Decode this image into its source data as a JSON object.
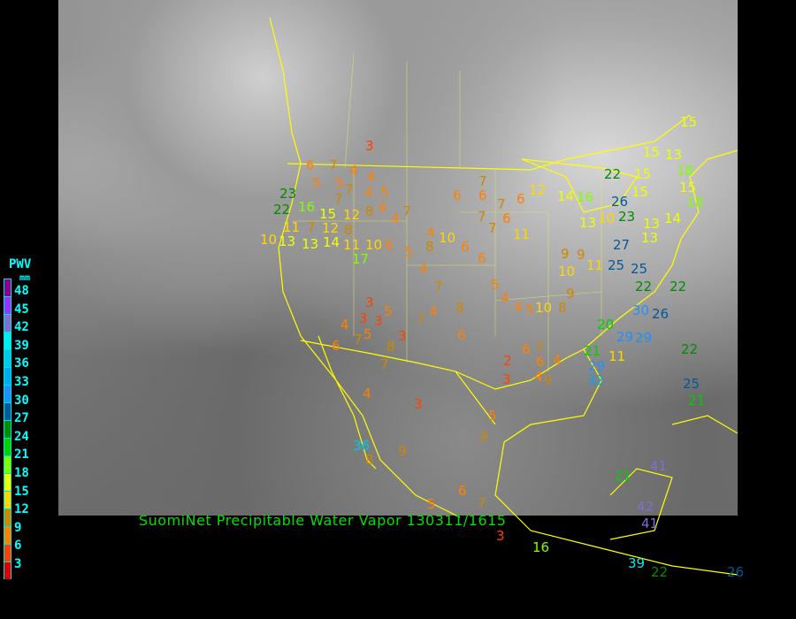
{
  "title": "SuomiNet Precipitable Water Vapor 130311/1615",
  "legend": {
    "title": "PWV",
    "unit": "mm",
    "labels": [
      "48",
      "45",
      "42",
      "39",
      "36",
      "33",
      "30",
      "27",
      "24",
      "21",
      "18",
      "15",
      "12",
      "9",
      "6",
      "3"
    ],
    "colors": [
      "#8b008b",
      "#9933ff",
      "#8070d0",
      "#00eeee",
      "#00c8e8",
      "#00aaee",
      "#1e90ff",
      "#005a9a",
      "#008c00",
      "#00d000",
      "#80ff00",
      "#eeff00",
      "#ffd700",
      "#cc8800",
      "#ff8000",
      "#ff4000",
      "#dd0000",
      "#990000"
    ]
  },
  "map": {
    "background": "visible satellite imagery (grayscale)",
    "coastline_color": "#ffff00"
  },
  "stations": [
    "3",
    "6",
    "7",
    "4",
    "4",
    "5",
    "5",
    "7",
    "4",
    "5",
    "7",
    "7",
    "6",
    "6",
    "7",
    "6",
    "23",
    "16",
    "15",
    "22",
    "12",
    "12",
    "11",
    "7",
    "8",
    "6",
    "10",
    "13",
    "13",
    "14",
    "8",
    "11",
    "10",
    "6",
    "5",
    "8",
    "10",
    "4",
    "7",
    "4",
    "7",
    "6",
    "7",
    "12",
    "6",
    "6",
    "4",
    "3",
    "5",
    "3",
    "3",
    "7",
    "7",
    "3",
    "4",
    "4",
    "5",
    "7",
    "6",
    "8",
    "5",
    "4",
    "4",
    "5",
    "2",
    "3",
    "6",
    "6",
    "7",
    "4",
    "4",
    "3",
    "4",
    "5",
    "9",
    "9",
    "8",
    "7",
    "6",
    "9",
    "10",
    "8",
    "9",
    "10",
    "9",
    "11",
    "13",
    "14",
    "10",
    "11",
    "13",
    "17",
    "22",
    "23",
    "26",
    "13",
    "14",
    "15",
    "15",
    "18",
    "13",
    "15",
    "15",
    "15",
    "18",
    "16",
    "27",
    "25",
    "25",
    "22",
    "22",
    "20",
    "29",
    "26",
    "21",
    "29",
    "32",
    "30",
    "22",
    "25",
    "21",
    "21",
    "41",
    "42",
    "41",
    "39",
    "16",
    "22",
    "26",
    "36",
    "6",
    "7",
    "5",
    "8",
    "3",
    "9",
    "11",
    "29",
    "26"
  ]
}
